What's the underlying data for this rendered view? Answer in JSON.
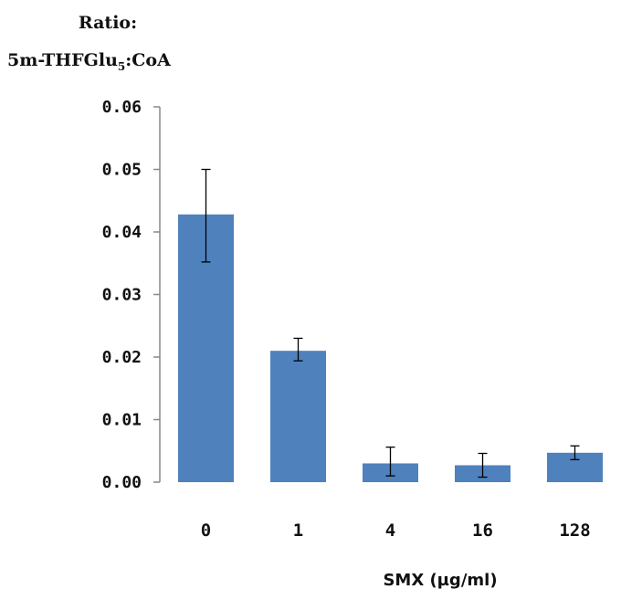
{
  "chart_data": {
    "type": "bar",
    "ylabel_lines": [
      "Ratio:",
      "5m-THFGlu",
      "5",
      ":CoA"
    ],
    "xlabel": "SMX (µg/ml)",
    "categories": [
      "0",
      "1",
      "4",
      "16",
      "128"
    ],
    "values": [
      0.0428,
      0.021,
      0.003,
      0.0027,
      0.0047
    ],
    "error_low": [
      0.0352,
      0.0194,
      0.001,
      0.0008,
      0.0036
    ],
    "error_high": [
      0.05,
      0.023,
      0.0056,
      0.0046,
      0.0058
    ],
    "ylim": [
      0,
      0.06
    ],
    "yticks": [
      "0.00",
      "0.01",
      "0.02",
      "0.03",
      "0.04",
      "0.05",
      "0.06"
    ],
    "bar_color": "#4F81BD",
    "grid": false,
    "legend": "none"
  }
}
